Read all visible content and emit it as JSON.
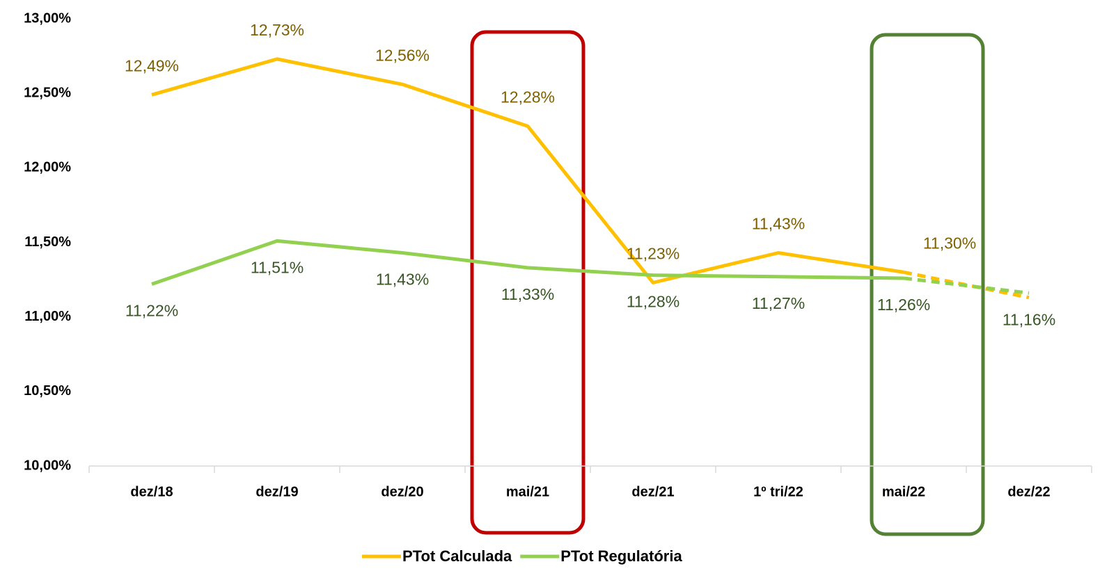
{
  "chart_data": {
    "type": "line",
    "categories": [
      "dez/18",
      "dez/19",
      "dez/20",
      "mai/21",
      "dez/21",
      "1º tri/22",
      "mai/22",
      "dez/22"
    ],
    "series": [
      {
        "name": "PTot Calculada",
        "color": "#FFC000",
        "label_color": "#7F6000",
        "label_position": "above",
        "dashed_from": 6,
        "values": [
          12.49,
          12.73,
          12.56,
          12.28,
          11.23,
          11.43,
          11.3,
          11.13
        ],
        "value_labels": [
          "12,49%",
          "12,73%",
          "12,56%",
          "12,28%",
          "11,23%",
          "11,43%",
          "11,30%",
          null
        ]
      },
      {
        "name": "PTot Regulatória",
        "color": "#92D050",
        "label_color": "#375623",
        "label_position": "below",
        "dashed_from": 6,
        "values": [
          11.22,
          11.51,
          11.43,
          11.33,
          11.28,
          11.27,
          11.26,
          11.16
        ],
        "value_labels": [
          "11,22%",
          "11,51%",
          "11,43%",
          "11,33%",
          "11,28%",
          "11,27%",
          "11,26%",
          "11,16%"
        ]
      }
    ],
    "ylim": [
      10,
      13
    ],
    "yticks": [
      {
        "value": 10,
        "label": "10,00%"
      },
      {
        "value": 10.5,
        "label": "10,50%"
      },
      {
        "value": 11,
        "label": "11,00%"
      },
      {
        "value": 11.5,
        "label": "11,50%"
      },
      {
        "value": 12,
        "label": "12,00%"
      },
      {
        "value": 12.5,
        "label": "12,50%"
      },
      {
        "value": 13,
        "label": "13,00%"
      }
    ],
    "grid": false,
    "legend": "bottom"
  }
}
